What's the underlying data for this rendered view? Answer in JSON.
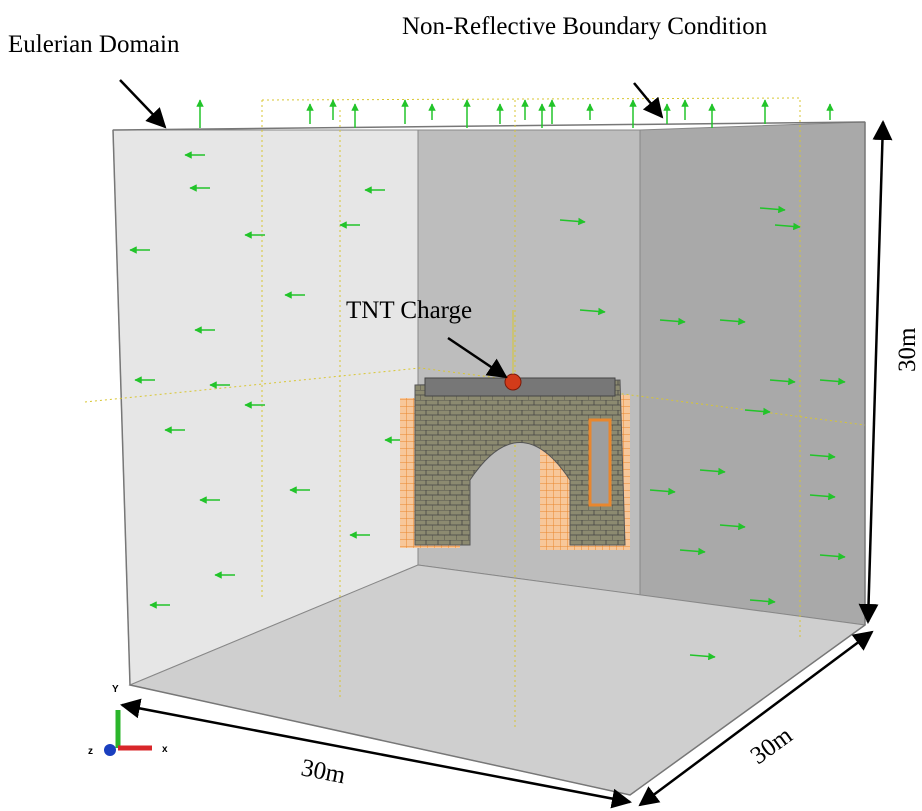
{
  "labels": {
    "eulerian_domain": "Eulerian Domain",
    "boundary_condition": "Non-Reflective Boundary Condition",
    "tnt_charge": "TNT Charge"
  },
  "dimensions": [
    "30m",
    "30m",
    "30m"
  ],
  "axes": {
    "x": "x",
    "y": "Y",
    "z": "z"
  }
}
